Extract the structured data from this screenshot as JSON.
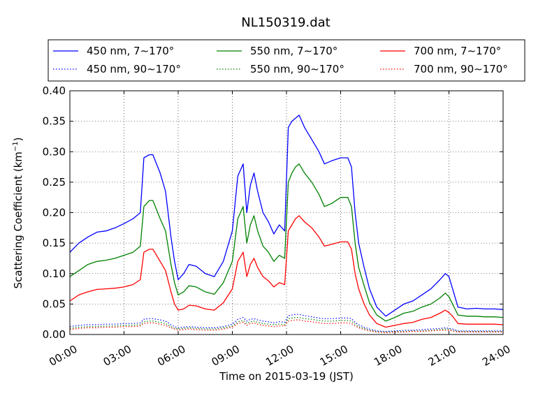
{
  "chart_data": {
    "type": "line",
    "title": "NL150319.dat",
    "xlabel": "Time on 2015-03-19 (JST)",
    "ylabel": "Scattering Coefficient (km",
    "ylabel_exp": "−1",
    "ylabel_close": ")",
    "xlim": [
      0,
      24
    ],
    "ylim": [
      0,
      0.4
    ],
    "grid": true,
    "legend_position": "top",
    "x_ticks": [
      {
        "value": 0,
        "label": "00:00"
      },
      {
        "value": 3,
        "label": "03:00"
      },
      {
        "value": 6,
        "label": "06:00"
      },
      {
        "value": 9,
        "label": "09:00"
      },
      {
        "value": 12,
        "label": "12:00"
      },
      {
        "value": 15,
        "label": "15:00"
      },
      {
        "value": 18,
        "label": "18:00"
      },
      {
        "value": 21,
        "label": "21:00"
      },
      {
        "value": 24,
        "label": "24:00"
      }
    ],
    "y_ticks": [
      {
        "value": 0.0,
        "label": "0.00"
      },
      {
        "value": 0.05,
        "label": "0.05"
      },
      {
        "value": 0.1,
        "label": "0.10"
      },
      {
        "value": 0.15,
        "label": "0.15"
      },
      {
        "value": 0.2,
        "label": "0.20"
      },
      {
        "value": 0.25,
        "label": "0.25"
      },
      {
        "value": 0.3,
        "label": "0.30"
      },
      {
        "value": 0.35,
        "label": "0.35"
      },
      {
        "value": 0.4,
        "label": "0.40"
      }
    ],
    "x": [
      0,
      0.5,
      1,
      1.5,
      2,
      2.5,
      3,
      3.5,
      3.9,
      4.1,
      4.4,
      4.6,
      4.8,
      5.0,
      5.3,
      5.6,
      5.8,
      6.0,
      6.3,
      6.6,
      7.0,
      7.5,
      8.0,
      8.5,
      9.0,
      9.3,
      9.6,
      9.8,
      10.0,
      10.2,
      10.4,
      10.7,
      11.0,
      11.3,
      11.6,
      11.9,
      12.1,
      12.3,
      12.5,
      12.7,
      13.0,
      13.4,
      13.8,
      14.1,
      14.5,
      15.0,
      15.4,
      15.6,
      15.8,
      16.0,
      16.3,
      16.6,
      17.0,
      17.5,
      18.0,
      18.5,
      19.0,
      19.5,
      20.0,
      20.5,
      20.8,
      21.0,
      21.2,
      21.5,
      22.0,
      22.5,
      23.0,
      23.5,
      24.0
    ],
    "series": [
      {
        "name": "450 nm, 7∼170°",
        "color": "#0000ff",
        "style": "solid",
        "values": [
          0.135,
          0.15,
          0.16,
          0.168,
          0.17,
          0.175,
          0.182,
          0.19,
          0.2,
          0.29,
          0.295,
          0.295,
          0.28,
          0.265,
          0.235,
          0.16,
          0.12,
          0.09,
          0.1,
          0.115,
          0.112,
          0.1,
          0.095,
          0.12,
          0.17,
          0.26,
          0.28,
          0.2,
          0.245,
          0.265,
          0.235,
          0.2,
          0.185,
          0.165,
          0.18,
          0.17,
          0.34,
          0.35,
          0.355,
          0.36,
          0.34,
          0.32,
          0.3,
          0.28,
          0.285,
          0.29,
          0.29,
          0.275,
          0.2,
          0.15,
          0.11,
          0.075,
          0.045,
          0.03,
          0.04,
          0.05,
          0.055,
          0.065,
          0.075,
          0.09,
          0.1,
          0.095,
          0.075,
          0.045,
          0.042,
          0.043,
          0.042,
          0.042,
          0.041
        ]
      },
      {
        "name": "550 nm, 7∼170°",
        "color": "#008000",
        "style": "solid",
        "values": [
          0.095,
          0.105,
          0.115,
          0.12,
          0.122,
          0.125,
          0.13,
          0.135,
          0.145,
          0.21,
          0.22,
          0.22,
          0.205,
          0.19,
          0.17,
          0.115,
          0.085,
          0.065,
          0.07,
          0.08,
          0.078,
          0.07,
          0.066,
          0.085,
          0.12,
          0.19,
          0.21,
          0.15,
          0.18,
          0.195,
          0.17,
          0.145,
          0.135,
          0.12,
          0.13,
          0.125,
          0.25,
          0.265,
          0.275,
          0.28,
          0.265,
          0.25,
          0.23,
          0.21,
          0.215,
          0.225,
          0.225,
          0.21,
          0.15,
          0.11,
          0.08,
          0.052,
          0.032,
          0.022,
          0.028,
          0.035,
          0.038,
          0.045,
          0.05,
          0.06,
          0.068,
          0.062,
          0.05,
          0.032,
          0.03,
          0.03,
          0.029,
          0.029,
          0.028
        ]
      },
      {
        "name": "700 nm, 7∼170°",
        "color": "#ff0000",
        "style": "solid",
        "values": [
          0.055,
          0.065,
          0.07,
          0.074,
          0.075,
          0.076,
          0.078,
          0.082,
          0.09,
          0.135,
          0.14,
          0.14,
          0.13,
          0.12,
          0.105,
          0.07,
          0.05,
          0.04,
          0.042,
          0.048,
          0.047,
          0.042,
          0.04,
          0.052,
          0.075,
          0.12,
          0.135,
          0.095,
          0.115,
          0.125,
          0.11,
          0.095,
          0.088,
          0.078,
          0.085,
          0.082,
          0.17,
          0.18,
          0.19,
          0.195,
          0.185,
          0.175,
          0.16,
          0.145,
          0.148,
          0.152,
          0.152,
          0.14,
          0.1,
          0.075,
          0.05,
          0.032,
          0.018,
          0.012,
          0.015,
          0.018,
          0.02,
          0.025,
          0.028,
          0.035,
          0.04,
          0.036,
          0.03,
          0.018,
          0.017,
          0.017,
          0.017,
          0.017,
          0.016
        ]
      },
      {
        "name": "450 nm, 90∼170°",
        "color": "#0000ff",
        "style": "dotted",
        "values": [
          0.013,
          0.015,
          0.016,
          0.016,
          0.017,
          0.017,
          0.018,
          0.018,
          0.019,
          0.025,
          0.026,
          0.026,
          0.025,
          0.024,
          0.022,
          0.016,
          0.013,
          0.011,
          0.012,
          0.013,
          0.012,
          0.011,
          0.011,
          0.013,
          0.017,
          0.025,
          0.028,
          0.022,
          0.025,
          0.026,
          0.024,
          0.022,
          0.021,
          0.019,
          0.021,
          0.02,
          0.031,
          0.032,
          0.033,
          0.033,
          0.031,
          0.029,
          0.027,
          0.026,
          0.026,
          0.027,
          0.027,
          0.026,
          0.02,
          0.016,
          0.012,
          0.009,
          0.006,
          0.005,
          0.006,
          0.007,
          0.007,
          0.008,
          0.009,
          0.01,
          0.011,
          0.01,
          0.009,
          0.006,
          0.006,
          0.006,
          0.006,
          0.006,
          0.006
        ]
      },
      {
        "name": "550 nm, 90∼170°",
        "color": "#008000",
        "style": "dotted",
        "values": [
          0.01,
          0.012,
          0.013,
          0.013,
          0.014,
          0.014,
          0.015,
          0.015,
          0.016,
          0.021,
          0.022,
          0.022,
          0.021,
          0.02,
          0.018,
          0.013,
          0.01,
          0.009,
          0.01,
          0.011,
          0.01,
          0.009,
          0.009,
          0.011,
          0.014,
          0.021,
          0.023,
          0.018,
          0.021,
          0.022,
          0.02,
          0.018,
          0.017,
          0.016,
          0.017,
          0.016,
          0.026,
          0.027,
          0.028,
          0.028,
          0.026,
          0.025,
          0.023,
          0.022,
          0.022,
          0.023,
          0.023,
          0.022,
          0.017,
          0.013,
          0.01,
          0.007,
          0.005,
          0.004,
          0.005,
          0.005,
          0.006,
          0.006,
          0.007,
          0.008,
          0.009,
          0.008,
          0.007,
          0.005,
          0.005,
          0.005,
          0.005,
          0.005,
          0.005
        ]
      },
      {
        "name": "700 nm, 90∼170°",
        "color": "#ff0000",
        "style": "dotted",
        "values": [
          0.008,
          0.01,
          0.011,
          0.011,
          0.012,
          0.012,
          0.013,
          0.013,
          0.014,
          0.018,
          0.019,
          0.019,
          0.018,
          0.017,
          0.015,
          0.011,
          0.009,
          0.007,
          0.008,
          0.009,
          0.008,
          0.007,
          0.007,
          0.009,
          0.012,
          0.018,
          0.02,
          0.015,
          0.018,
          0.019,
          0.017,
          0.015,
          0.014,
          0.013,
          0.014,
          0.014,
          0.022,
          0.023,
          0.024,
          0.024,
          0.022,
          0.021,
          0.019,
          0.018,
          0.018,
          0.019,
          0.019,
          0.018,
          0.014,
          0.011,
          0.008,
          0.006,
          0.004,
          0.003,
          0.004,
          0.004,
          0.005,
          0.005,
          0.006,
          0.007,
          0.007,
          0.007,
          0.006,
          0.004,
          0.004,
          0.004,
          0.004,
          0.004,
          0.004
        ]
      }
    ]
  }
}
